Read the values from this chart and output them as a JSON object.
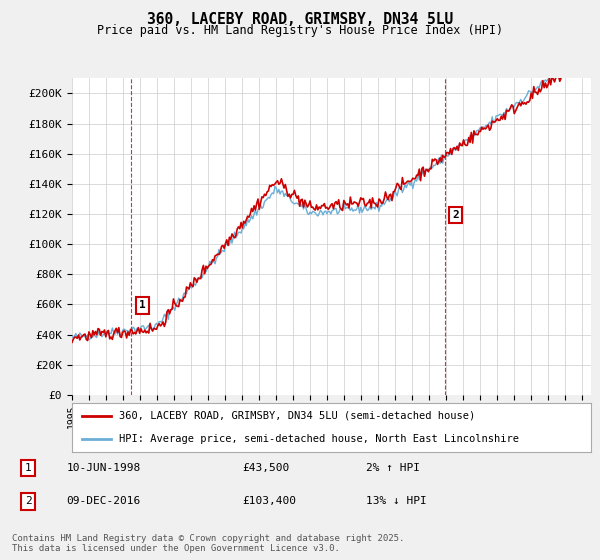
{
  "title": "360, LACEBY ROAD, GRIMSBY, DN34 5LU",
  "subtitle": "Price paid vs. HM Land Registry's House Price Index (HPI)",
  "ylabel_ticks": [
    "£0",
    "£20K",
    "£40K",
    "£60K",
    "£80K",
    "£100K",
    "£120K",
    "£140K",
    "£160K",
    "£180K",
    "£200K"
  ],
  "ytick_values": [
    0,
    20000,
    40000,
    60000,
    80000,
    100000,
    120000,
    140000,
    160000,
    180000,
    200000
  ],
  "ylim": [
    0,
    210000
  ],
  "xlim_start": 1995.0,
  "xlim_end": 2025.5,
  "sale1_date": 1998.44,
  "sale1_price": 43500,
  "sale1_label": "1",
  "sale2_date": 2016.94,
  "sale2_price": 103400,
  "sale2_label": "2",
  "hpi_color": "#6baed6",
  "price_color": "#cc0000",
  "vline_color": "#cc0000",
  "legend_label_price": "360, LACEBY ROAD, GRIMSBY, DN34 5LU (semi-detached house)",
  "legend_label_hpi": "HPI: Average price, semi-detached house, North East Lincolnshire",
  "footnote": "Contains HM Land Registry data © Crown copyright and database right 2025.\nThis data is licensed under the Open Government Licence v3.0.",
  "bg_color": "#f0f0f0",
  "plot_bg_color": "#ffffff"
}
